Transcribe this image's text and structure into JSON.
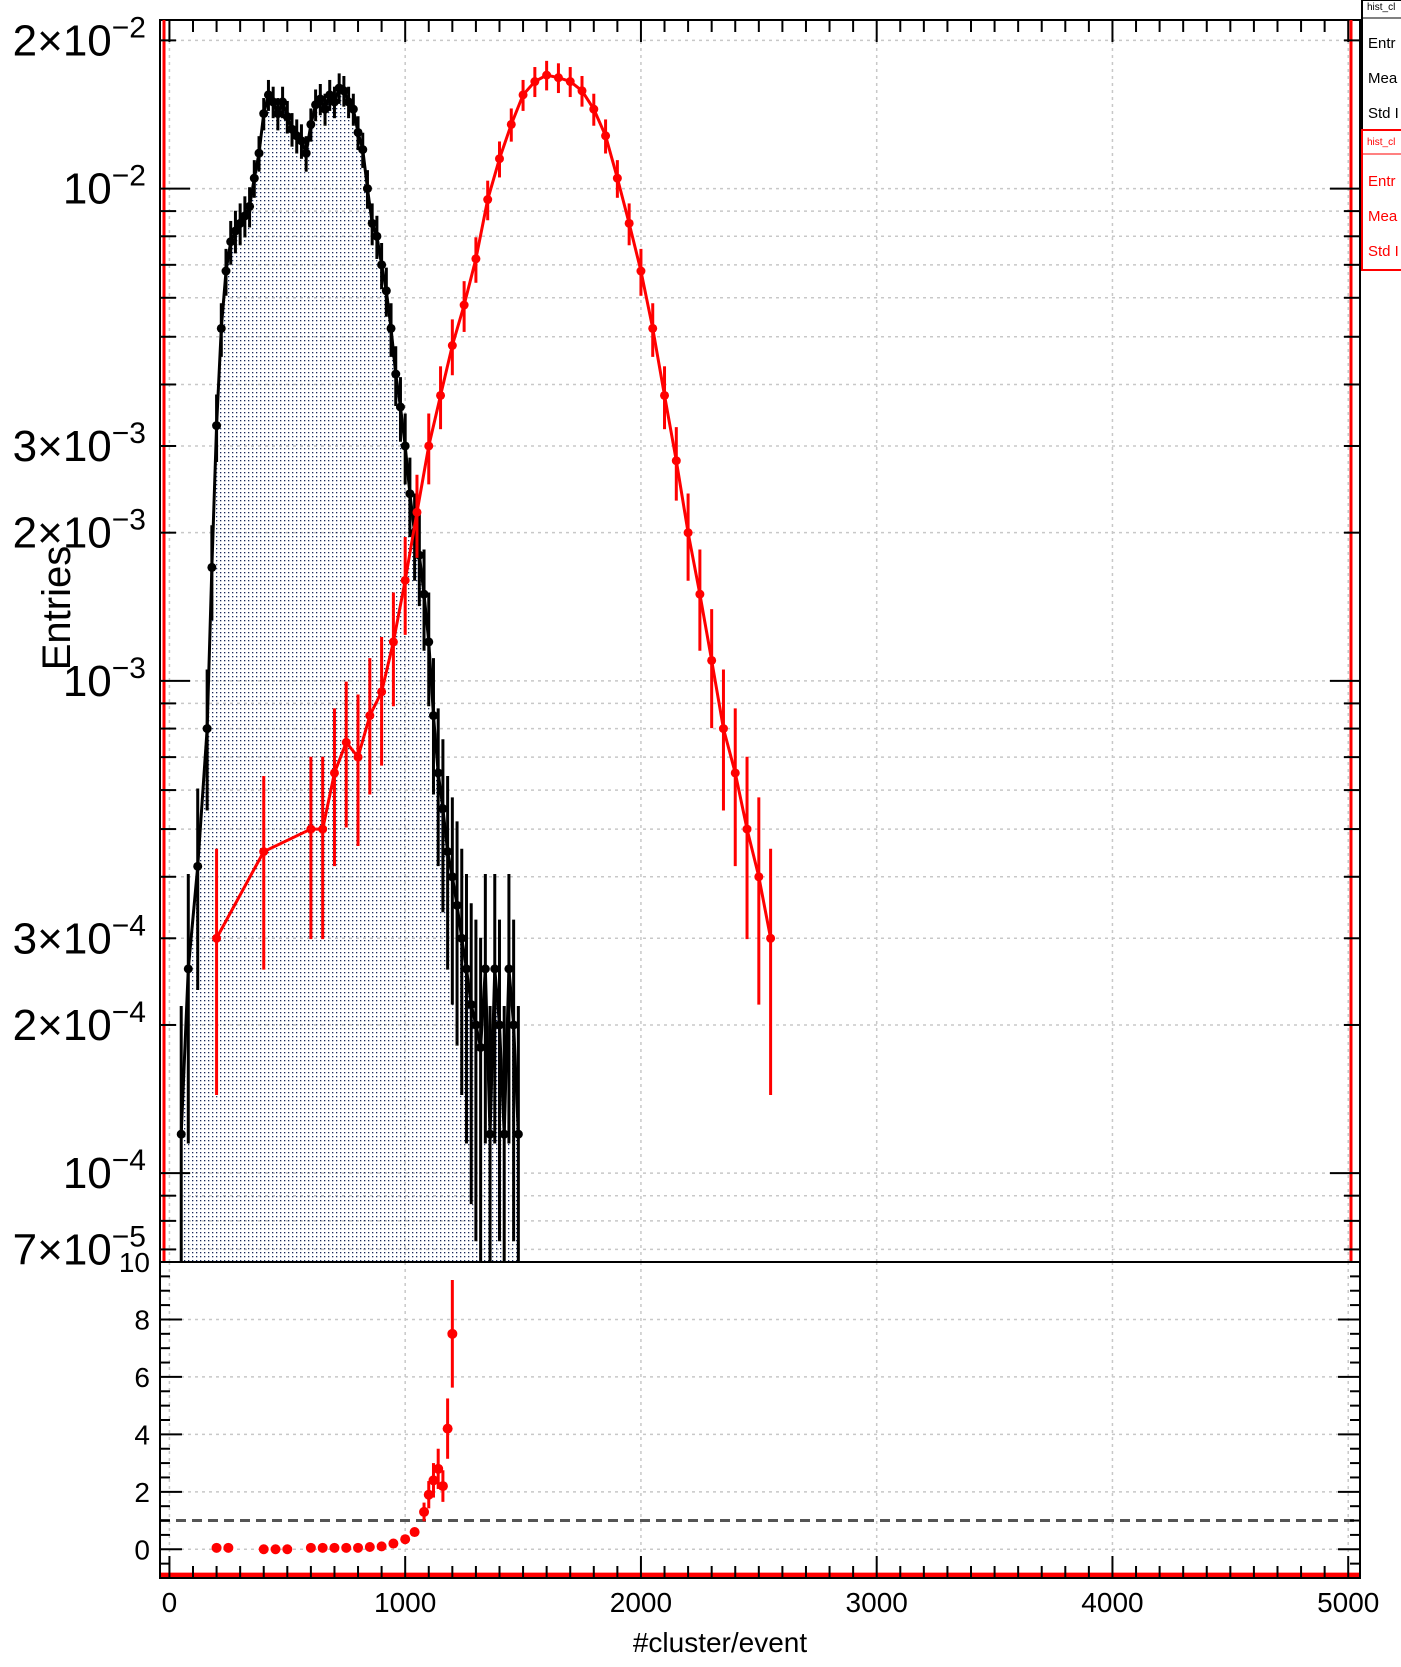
{
  "chart_data": [
    {
      "type": "scatter",
      "ylabel": "Entries",
      "xlim": [
        -40,
        5050
      ],
      "ylim": [
        6.6e-05,
        0.022
      ],
      "log_y": true,
      "grid": true,
      "y_ticks": [
        {
          "v": 0.02,
          "mant": "2",
          "exp": "−2"
        },
        {
          "v": 0.01,
          "mant": "",
          "exp": "−2"
        },
        {
          "v": 0.003,
          "mant": "3",
          "exp": "−3"
        },
        {
          "v": 0.002,
          "mant": "2",
          "exp": "−3"
        },
        {
          "v": 0.001,
          "mant": "",
          "exp": "−3"
        },
        {
          "v": 0.0003,
          "mant": "3",
          "exp": "−4"
        },
        {
          "v": 0.0002,
          "mant": "2",
          "exp": "−4"
        },
        {
          "v": 0.0001,
          "mant": "",
          "exp": "−4"
        },
        {
          "v": 7e-05,
          "mant": "7",
          "exp": "−5"
        }
      ],
      "series": [
        {
          "color": "#000000",
          "fill": "hatched",
          "x": [
            50,
            80,
            120,
            160,
            180,
            200,
            220,
            240,
            260,
            280,
            300,
            320,
            340,
            360,
            380,
            400,
            420,
            440,
            460,
            480,
            500,
            520,
            540,
            560,
            580,
            600,
            620,
            640,
            660,
            680,
            700,
            720,
            740,
            760,
            780,
            800,
            820,
            840,
            860,
            880,
            900,
            920,
            940,
            960,
            980,
            1000,
            1020,
            1040,
            1060,
            1080,
            1100,
            1120,
            1140,
            1160,
            1180,
            1200,
            1220,
            1240,
            1260,
            1280,
            1300,
            1320,
            1340,
            1360,
            1380,
            1400,
            1420,
            1440,
            1460,
            1480
          ],
          "y": [
            0.00012,
            0.00026,
            0.00042,
            0.0008,
            0.0017,
            0.0033,
            0.0052,
            0.0068,
            0.0078,
            0.0082,
            0.0085,
            0.0088,
            0.0092,
            0.0105,
            0.0118,
            0.0142,
            0.0155,
            0.015,
            0.0142,
            0.015,
            0.014,
            0.0132,
            0.0128,
            0.0125,
            0.0118,
            0.0135,
            0.0148,
            0.0152,
            0.0145,
            0.0155,
            0.015,
            0.016,
            0.0158,
            0.015,
            0.0145,
            0.013,
            0.012,
            0.01,
            0.0085,
            0.008,
            0.007,
            0.0062,
            0.0052,
            0.0042,
            0.0036,
            0.003,
            0.0024,
            0.002,
            0.0018,
            0.0015,
            0.0012,
            0.00085,
            0.00065,
            0.00055,
            0.00045,
            0.0004,
            0.00035,
            0.0003,
            0.00026,
            0.00022,
            0.0002,
            0.00018,
            0.00026,
            0.00012,
            0.00026,
            0.0002,
            0.00012,
            0.00026,
            0.0002,
            0.00012
          ]
        },
        {
          "color": "#ff0000",
          "fill": "none",
          "x": [
            200,
            400,
            600,
            650,
            700,
            750,
            800,
            850,
            900,
            950,
            1000,
            1050,
            1100,
            1150,
            1200,
            1250,
            1300,
            1350,
            1400,
            1450,
            1500,
            1550,
            1600,
            1650,
            1700,
            1750,
            1800,
            1850,
            1900,
            1950,
            2000,
            2050,
            2100,
            2150,
            2200,
            2250,
            2300,
            2350,
            2400,
            2450,
            2500,
            2550
          ],
          "y": [
            0.0003,
            0.00045,
            0.0005,
            0.0005,
            0.00065,
            0.00075,
            0.0007,
            0.00085,
            0.00095,
            0.0012,
            0.0016,
            0.0022,
            0.003,
            0.0038,
            0.0048,
            0.0058,
            0.0072,
            0.0095,
            0.0115,
            0.0135,
            0.0155,
            0.0165,
            0.017,
            0.0168,
            0.0165,
            0.0158,
            0.0145,
            0.0128,
            0.0105,
            0.0085,
            0.0068,
            0.0052,
            0.0038,
            0.0028,
            0.002,
            0.0015,
            0.0011,
            0.0008,
            0.00065,
            0.0005,
            0.0004,
            0.0003
          ]
        }
      ]
    },
    {
      "type": "scatter",
      "xlabel": "#cluster/event",
      "xlim": [
        -40,
        5050
      ],
      "ylim": [
        -1,
        10
      ],
      "grid": true,
      "x_ticks": [
        0,
        1000,
        2000,
        3000,
        4000,
        5000
      ],
      "y_ticks": [
        0,
        2,
        4,
        6,
        8,
        10
      ],
      "reference_line": 1,
      "series": [
        {
          "color": "#ff0000",
          "x": [
            200,
            250,
            400,
            450,
            500,
            600,
            650,
            700,
            750,
            800,
            850,
            900,
            950,
            1000,
            1040,
            1080,
            1100,
            1120,
            1140,
            1160,
            1180,
            1200
          ],
          "y": [
            0.05,
            0.05,
            0.0,
            0.0,
            0.0,
            0.05,
            0.05,
            0.05,
            0.05,
            0.05,
            0.08,
            0.1,
            0.2,
            0.35,
            0.6,
            1.3,
            1.9,
            2.4,
            2.8,
            2.2,
            4.2,
            7.5
          ]
        }
      ]
    }
  ],
  "legend": {
    "boxes": [
      {
        "color": "#000000",
        "name": "hist_cl",
        "rows": [
          "Entr",
          "Mea",
          "Std I"
        ]
      },
      {
        "color": "#ff0000",
        "name": "hist_cl",
        "rows": [
          "Entr",
          "Mea",
          "Std I"
        ]
      }
    ]
  }
}
